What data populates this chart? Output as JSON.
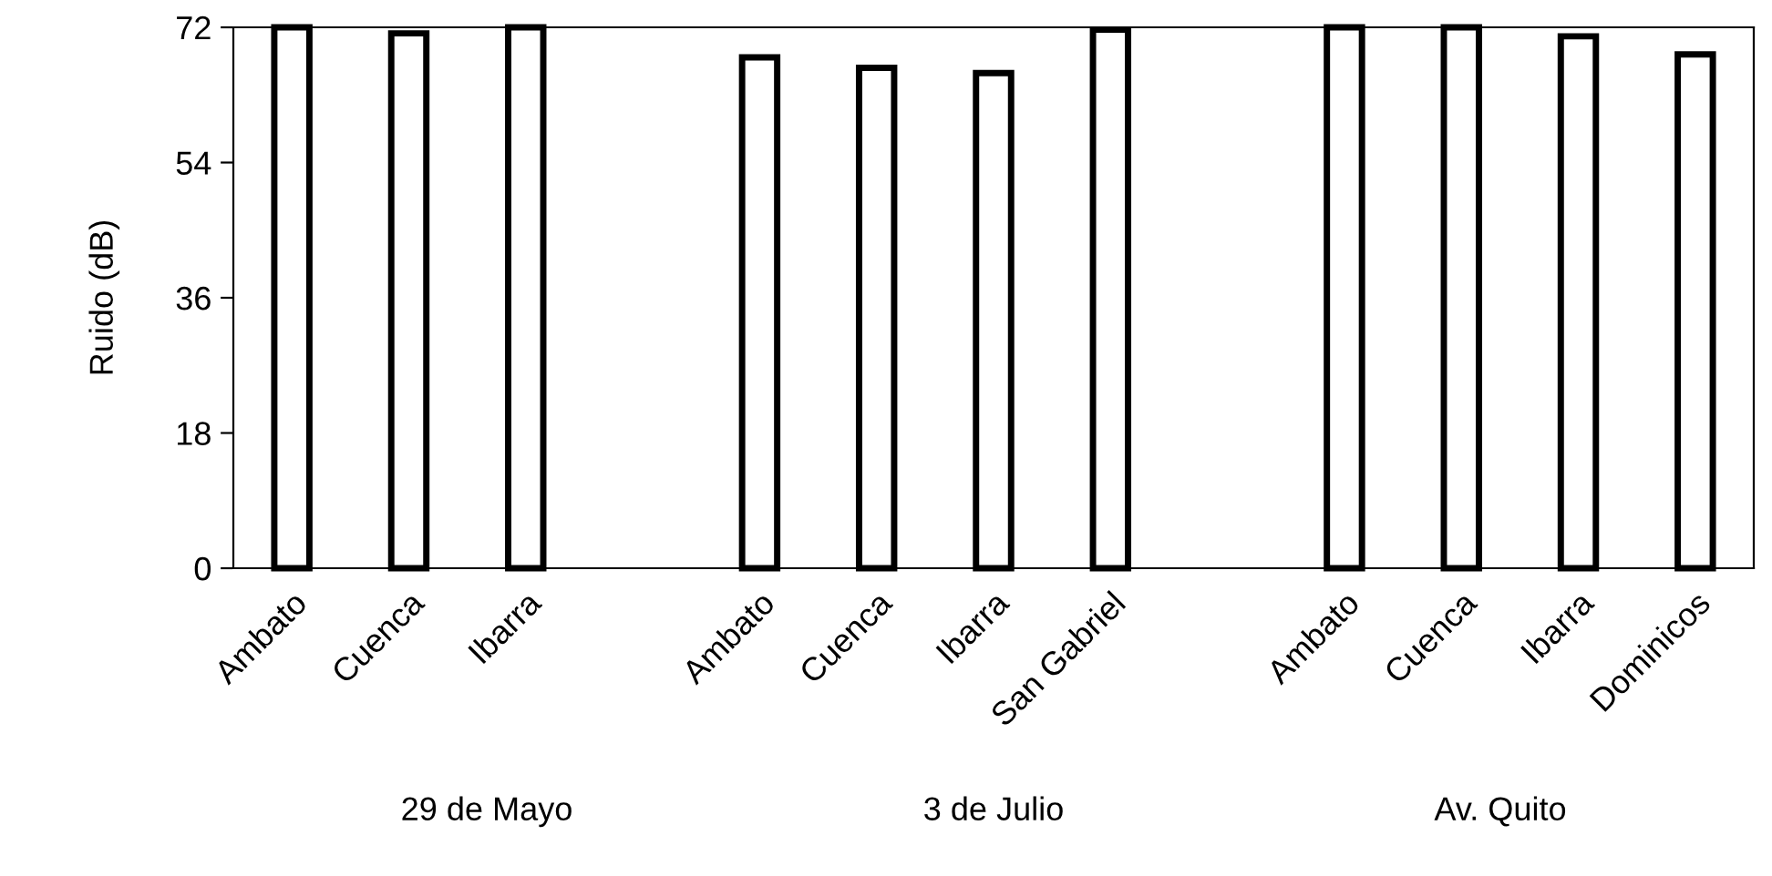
{
  "chart_data": {
    "type": "bar",
    "ylabel": "Ruido (dB)",
    "categories": [
      "Ambato",
      "Cuenca",
      "Ibarra",
      null,
      "Ambato",
      "Cuenca",
      "Ibarra",
      "San Gabriel",
      null,
      "Ambato",
      "Cuenca",
      "Ibarra",
      "Dominicos"
    ],
    "values": [
      72,
      71.2,
      72,
      null,
      68.0,
      66.6,
      65.9,
      71.7,
      null,
      72,
      72,
      70.8,
      68.4
    ],
    "color": "#ffffff",
    "ylim": [
      0,
      72
    ],
    "yticks": [
      0,
      18,
      36,
      54,
      72
    ],
    "grid": false,
    "annotations": [
      "29 de Mayo",
      "3 de Julio",
      "Av. Quito"
    ]
  }
}
